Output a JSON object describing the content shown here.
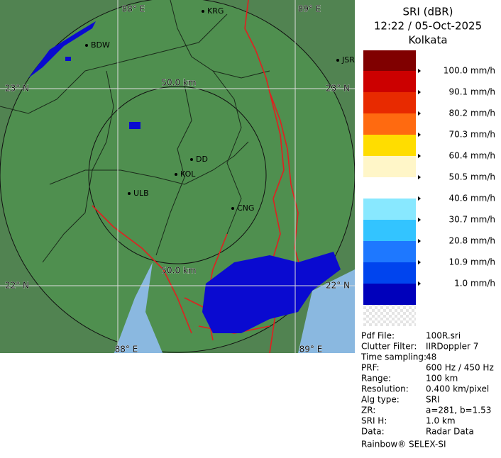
{
  "legend": {
    "title": [
      "SRI (dBR)",
      "12:22 / 05-Oct-2025",
      "Kolkata"
    ],
    "items": [
      {
        "label": "100.0 mm/h",
        "color": "#cc0000"
      },
      {
        "label": "90.1 mm/h",
        "color": "#e82a00"
      },
      {
        "label": "80.2 mm/h",
        "color": "#ff6a10"
      },
      {
        "label": "70.3 mm/h",
        "color": "#ffdd00"
      },
      {
        "label": "60.4 mm/h",
        "color": "#fff6c8"
      },
      {
        "label": "50.5 mm/h",
        "color": "#ffffff"
      },
      {
        "label": "40.6 mm/h",
        "color": "#88e8ff"
      },
      {
        "label": "30.7 mm/h",
        "color": "#33c4ff"
      },
      {
        "label": "20.8 mm/h",
        "color": "#1e78ff"
      },
      {
        "label": "10.9 mm/h",
        "color": "#0044ee"
      },
      {
        "label": "1.0 mm/h",
        "color": "#0000bb"
      }
    ],
    "top_color": "#800000"
  },
  "info": [
    [
      "Pdf File:",
      "100R.sri"
    ],
    [
      "Clutter Filter:",
      "IIRDoppler 7"
    ],
    [
      "Time sampling:",
      "48"
    ],
    [
      "PRF:",
      "600 Hz / 450 Hz"
    ],
    [
      "Range:",
      "100 km"
    ],
    [
      "Resolution:",
      "0.400 km/pixel"
    ],
    [
      "Alg type:",
      "SRI"
    ],
    [
      "ZR:",
      "a=281, b=1.53"
    ],
    [
      "SRI H:",
      "1.0 km"
    ],
    [
      "Data:",
      "Radar Data"
    ]
  ],
  "footer": "Rainbow® SELEX-SI",
  "map": {
    "lon_labels": [
      "88° E",
      "89° E"
    ],
    "lat_labels": [
      "23° N",
      "22° N"
    ],
    "range_labels": [
      "50.0 km",
      "50.0 km"
    ],
    "cities": [
      "KRG",
      "BDW",
      "JSR",
      "DD",
      "KOL",
      "ULB",
      "CNG"
    ]
  }
}
